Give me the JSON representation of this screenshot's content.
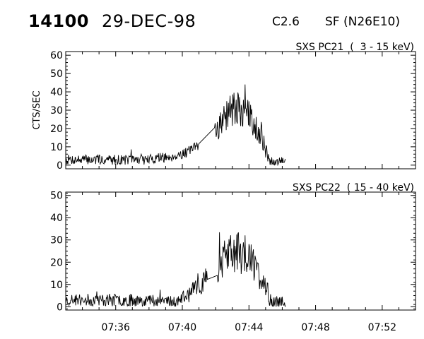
{
  "header": {
    "event_id": "14100",
    "date": "29-DEC-98",
    "goes_class": "C2.6",
    "flare_location": "SF (N26E10)"
  },
  "chart_data": [
    {
      "type": "line",
      "title": "SXS PC21  (  3 - 15 keV)",
      "ylabel": "CTS/SEC",
      "xlabel": "",
      "xlim": [
        "07:33",
        "07:54"
      ],
      "ylim": [
        -2,
        62
      ],
      "yticks": [
        0,
        10,
        20,
        30,
        40,
        50,
        60
      ],
      "xticks": [
        "07:36",
        "07:40",
        "07:44",
        "07:48",
        "07:52"
      ],
      "grid": false,
      "line_color": "#000000",
      "series": [
        {
          "x": [
            "07:33:00",
            "07:34:00",
            "07:35:00",
            "07:36:00",
            "07:37:00",
            "07:38:00",
            "07:38:30",
            "07:39:00",
            "07:39:30",
            "07:40:00",
            "07:40:30",
            "07:41:00",
            "07:41:20",
            "07:41:40",
            "07:41:55",
            "07:42:05",
            "07:42:20",
            "07:42:40",
            "07:43:00",
            "07:43:20",
            "07:43:40",
            "07:44:00",
            "07:44:15",
            "07:44:30",
            "07:44:45",
            "07:45:00",
            "07:45:15",
            "07:45:30",
            "07:46:00",
            "07:46:12"
          ],
          "y": [
            3,
            3,
            3,
            3,
            3,
            3,
            4,
            4,
            5,
            6,
            8,
            10,
            13,
            15,
            22,
            20,
            24,
            27,
            29,
            30,
            29,
            27,
            24,
            20,
            15,
            8,
            2,
            1,
            2,
            2
          ],
          "noise": [
            2,
            2,
            2,
            2,
            2,
            2,
            2,
            2,
            2,
            2,
            2,
            3,
            3,
            4,
            5,
            5,
            6,
            6,
            7,
            7,
            7,
            6,
            6,
            5,
            5,
            3,
            2,
            2,
            2,
            2
          ]
        }
      ]
    },
    {
      "type": "line",
      "title": "SXS PC22  ( 15 - 40 keV)",
      "ylabel": "",
      "xlabel": "",
      "xlim": [
        "07:33",
        "07:54"
      ],
      "ylim": [
        -1.5,
        51.5
      ],
      "yticks": [
        0,
        10,
        20,
        30,
        40,
        50
      ],
      "xticks": [
        "07:36",
        "07:40",
        "07:44",
        "07:48",
        "07:52"
      ],
      "grid": false,
      "line_color": "#000000",
      "series": [
        {
          "x": [
            "07:33:00",
            "07:34:00",
            "07:35:00",
            "07:36:00",
            "07:37:00",
            "07:38:00",
            "07:39:00",
            "07:39:30",
            "07:40:00",
            "07:40:30",
            "07:41:00",
            "07:41:20",
            "07:41:40",
            "07:41:55",
            "07:42:05",
            "07:42:20",
            "07:42:40",
            "07:43:00",
            "07:43:20",
            "07:43:40",
            "07:44:00",
            "07:44:15",
            "07:44:30",
            "07:44:45",
            "07:45:00",
            "07:45:15",
            "07:45:30",
            "07:46:00",
            "07:46:12"
          ],
          "y": [
            3,
            3,
            3,
            3,
            3,
            3,
            3,
            2,
            4,
            6,
            9,
            12,
            14,
            16,
            18,
            20,
            23,
            25,
            24,
            23,
            22,
            19,
            16,
            12,
            8,
            3,
            2,
            2,
            2
          ],
          "noise": [
            2,
            2,
            2,
            2,
            2,
            2,
            2,
            2,
            2,
            3,
            3,
            4,
            4,
            4,
            5,
            6,
            6,
            7,
            7,
            6,
            6,
            5,
            5,
            4,
            3,
            2,
            2,
            2,
            2
          ]
        }
      ]
    }
  ]
}
